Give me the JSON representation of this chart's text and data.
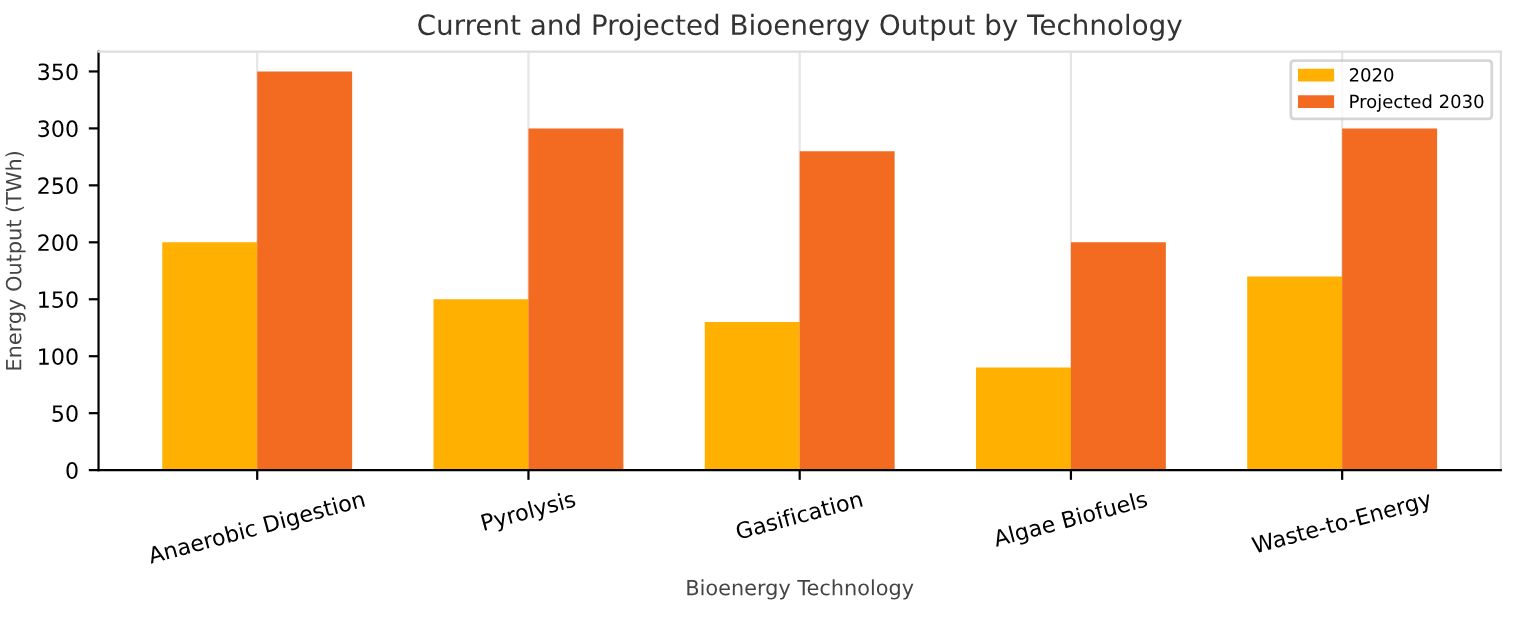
{
  "chart_data": {
    "type": "bar",
    "title": "Current and Projected Bioenergy Output by Technology",
    "xlabel": "Bioenergy Technology",
    "ylabel": "Energy Output (TWh)",
    "categories": [
      "Anaerobic Digestion",
      "Pyrolysis",
      "Gasification",
      "Algae Biofuels",
      "Waste-to-Energy"
    ],
    "series": [
      {
        "name": "2020",
        "color": "#ffb000",
        "values": [
          200,
          150,
          130,
          90,
          170
        ]
      },
      {
        "name": "Projected 2030",
        "color": "#f26b21",
        "values": [
          350,
          300,
          280,
          200,
          300
        ]
      }
    ],
    "ylim": [
      0,
      367.5
    ],
    "yticks": [
      0,
      50,
      100,
      150,
      200,
      250,
      300,
      350
    ],
    "grid": "x",
    "legend": "top right"
  }
}
